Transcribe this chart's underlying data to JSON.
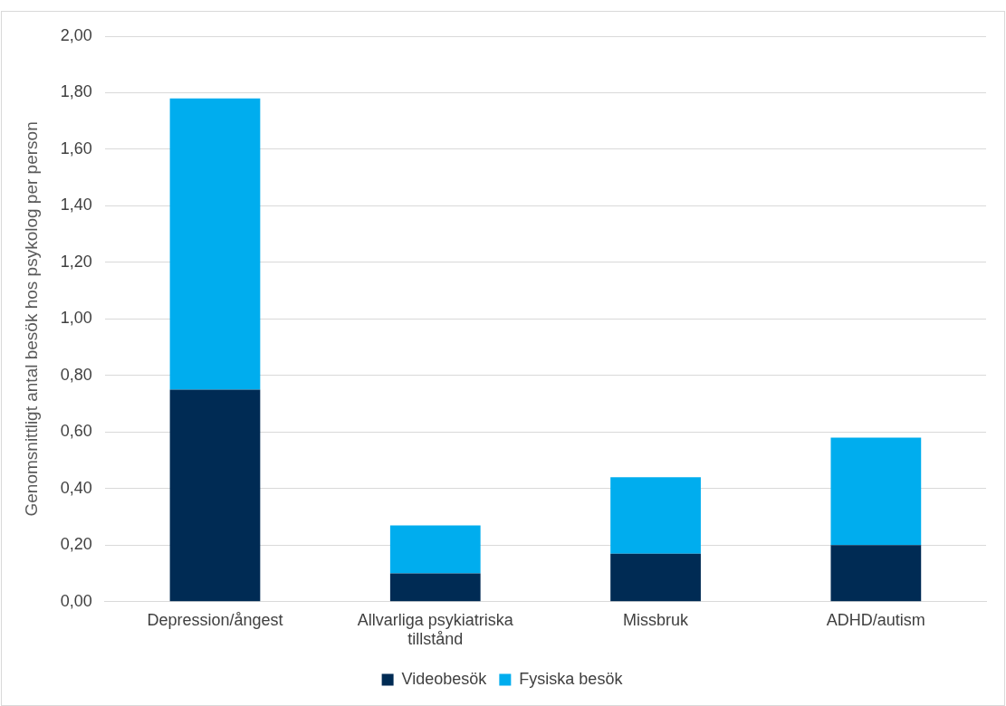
{
  "chart_data": {
    "type": "bar",
    "stacked": true,
    "ylabel": "Genomsnittligt antal besök hos psykolog per person",
    "categories": [
      "Depression/ångest",
      "Allvarliga psykiatriska tillstånd",
      "Missbruk",
      "ADHD/autism"
    ],
    "series": [
      {
        "name": "Videobesök",
        "color": "#002b54",
        "values": [
          0.75,
          0.1,
          0.17,
          0.2
        ]
      },
      {
        "name": "Fysiska besök",
        "color": "#00adee",
        "values": [
          1.03,
          0.17,
          0.27,
          0.38
        ]
      }
    ],
    "ylim": [
      0,
      2
    ],
    "yticks": [
      {
        "value": 0,
        "label": "0,00"
      },
      {
        "value": 0.2,
        "label": "0,20"
      },
      {
        "value": 0.4,
        "label": "0,40"
      },
      {
        "value": 0.6,
        "label": "0,60"
      },
      {
        "value": 0.8,
        "label": "0,80"
      },
      {
        "value": 1,
        "label": "1,00"
      },
      {
        "value": 1.2,
        "label": "1,20"
      },
      {
        "value": 1.4,
        "label": "1,40"
      },
      {
        "value": 1.6,
        "label": "1,60"
      },
      {
        "value": 1.8,
        "label": "1,80"
      },
      {
        "value": 2,
        "label": "2,00"
      }
    ],
    "grid": "y",
    "legend": "bottom"
  }
}
